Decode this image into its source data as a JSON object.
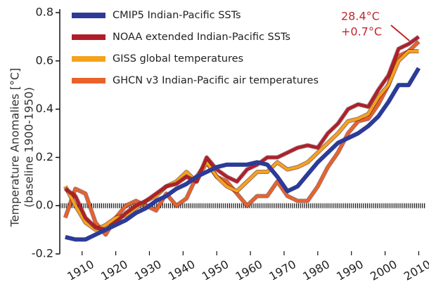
{
  "chart_data": {
    "type": "line",
    "ylabel": "Temperature Anomalies  [°C]",
    "ylabel_note": "(baseline 1900-1950)",
    "annotations": [
      "28.4°C",
      "+0.7°C"
    ],
    "x": [
      1905,
      1908,
      1911,
      1914,
      1917,
      1920,
      1923,
      1926,
      1929,
      1932,
      1935,
      1938,
      1941,
      1944,
      1947,
      1950,
      1953,
      1956,
      1959,
      1962,
      1965,
      1968,
      1971,
      1974,
      1977,
      1980,
      1983,
      1986,
      1989,
      1992,
      1995,
      1998,
      2001,
      2004,
      2007,
      2010
    ],
    "series": [
      {
        "name": "CMIP5 Indian-Pacific SSTs",
        "color": "#2b3b97",
        "values": [
          -0.13,
          -0.14,
          -0.14,
          -0.12,
          -0.1,
          -0.08,
          -0.06,
          -0.03,
          -0.01,
          0.02,
          0.04,
          0.07,
          0.09,
          0.12,
          0.14,
          0.16,
          0.17,
          0.17,
          0.17,
          0.18,
          0.17,
          0.12,
          0.06,
          0.08,
          0.13,
          0.18,
          0.22,
          0.26,
          0.28,
          0.3,
          0.33,
          0.37,
          0.43,
          0.5,
          0.5,
          0.57
        ]
      },
      {
        "name": "NOAA extended Indian-Pacific SSTs",
        "color": "#b01e2a",
        "values": [
          0.07,
          0.04,
          -0.05,
          -0.09,
          -0.1,
          -0.07,
          -0.03,
          0.0,
          0.02,
          0.05,
          0.08,
          0.09,
          0.12,
          0.1,
          0.2,
          0.15,
          0.12,
          0.1,
          0.15,
          0.17,
          0.2,
          0.2,
          0.22,
          0.24,
          0.25,
          0.24,
          0.3,
          0.34,
          0.4,
          0.42,
          0.41,
          0.48,
          0.54,
          0.65,
          0.67,
          0.7
        ]
      },
      {
        "name": "GISS global temperatures",
        "color": "#f5a21b",
        "values": [
          0.08,
          0.0,
          -0.07,
          -0.1,
          -0.08,
          -0.05,
          -0.04,
          -0.01,
          0.02,
          0.04,
          0.08,
          0.1,
          0.14,
          0.1,
          0.18,
          0.12,
          0.08,
          0.06,
          0.1,
          0.14,
          0.14,
          0.18,
          0.15,
          0.16,
          0.18,
          0.22,
          0.26,
          0.3,
          0.35,
          0.36,
          0.38,
          0.45,
          0.5,
          0.6,
          0.64,
          0.64
        ]
      },
      {
        "name": "GHCN v3 Indian-Pacific air temperatures",
        "color": "#e8622a",
        "values": [
          -0.05,
          0.07,
          0.05,
          -0.07,
          -0.12,
          -0.05,
          0.0,
          0.02,
          0.0,
          -0.02,
          0.05,
          0.0,
          0.03,
          0.12,
          0.18,
          0.12,
          0.1,
          0.05,
          0.0,
          0.04,
          0.04,
          0.1,
          0.04,
          0.02,
          0.02,
          0.08,
          0.16,
          0.22,
          0.3,
          0.35,
          0.36,
          0.42,
          0.5,
          0.62,
          0.64,
          0.68
        ]
      }
    ],
    "xlim": [
      1904,
      2012
    ],
    "xticks": [
      1910,
      1920,
      1930,
      1940,
      1950,
      1960,
      1970,
      1980,
      1990,
      2000,
      2010
    ],
    "ylim": [
      -0.2,
      0.8
    ],
    "yticks": [
      -0.2,
      {
        "value": 0,
        "label": "0.0"
      },
      0.2,
      0.4,
      0.6,
      0.8
    ],
    "zero_line": true
  }
}
